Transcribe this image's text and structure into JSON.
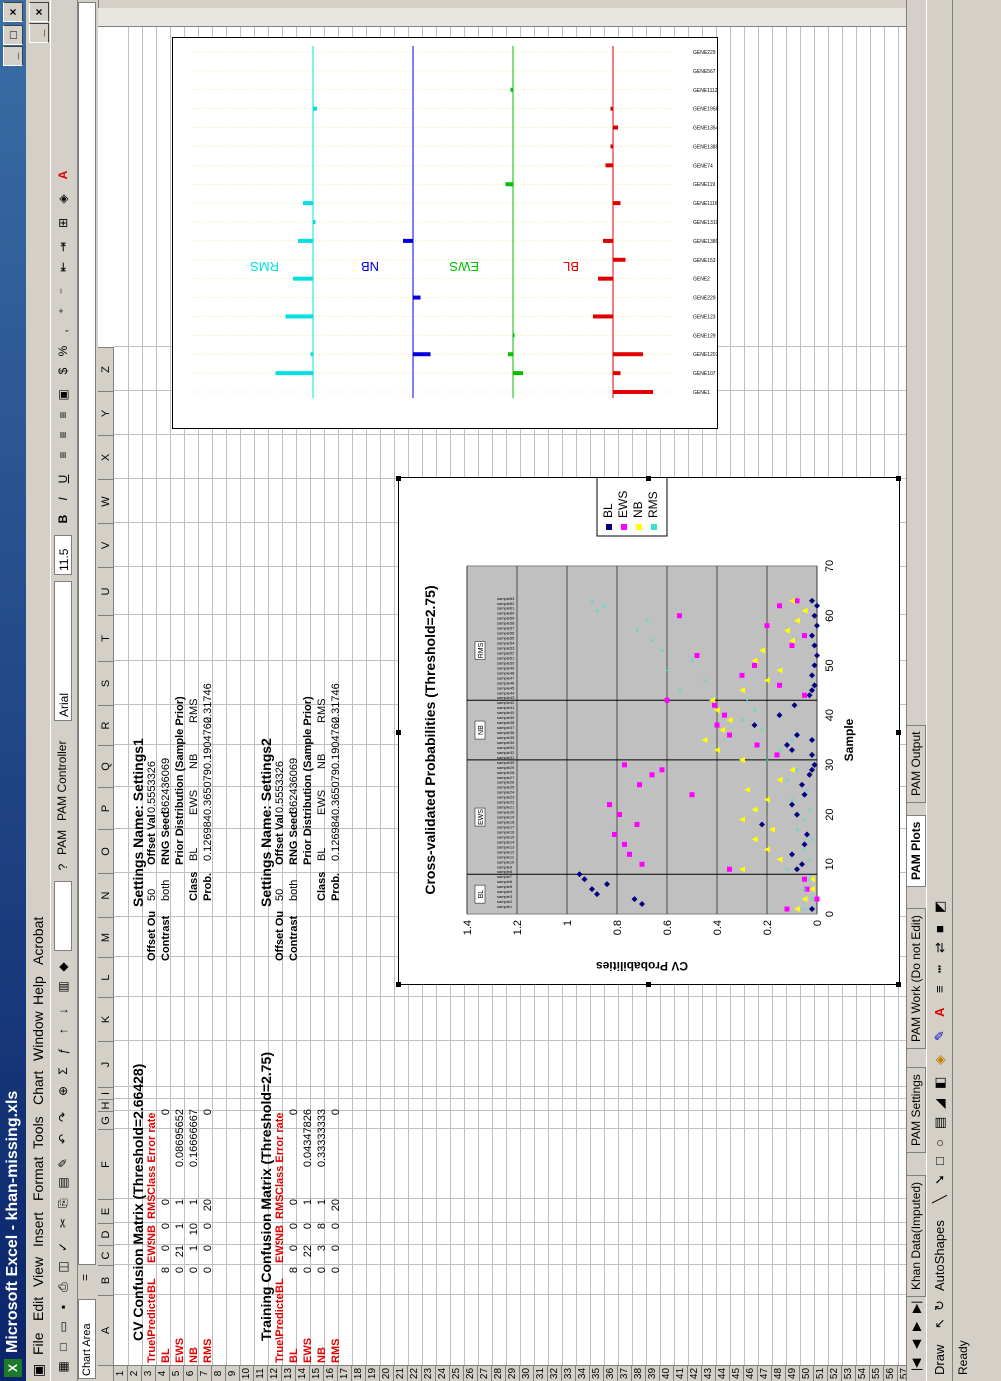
{
  "window": {
    "title": "Microsoft Excel - khan-missing.xls",
    "controls": [
      "_",
      "□",
      "×"
    ]
  },
  "menu": [
    "File",
    "Edit",
    "View",
    "Insert",
    "Format",
    "Tools",
    "Chart",
    "Window",
    "Help",
    "Acrobat"
  ],
  "toolbar": {
    "pam_label": "PAM",
    "pam_controller": "PAM Controller",
    "font": "Arial",
    "size": "11.5"
  },
  "formula_bar": {
    "name_box": "Chart Area",
    "eq": "="
  },
  "columns": [
    "A",
    "B",
    "C",
    "D",
    "E",
    "F",
    "G",
    "H",
    "I",
    "J",
    "K",
    "L",
    "M",
    "N",
    "O",
    "P",
    "Q",
    "R",
    "S",
    "T",
    "U",
    "V",
    "W",
    "X",
    "Y",
    "Z"
  ],
  "rows": [
    "1",
    "2",
    "3",
    "4",
    "5",
    "6",
    "7",
    "8",
    "9",
    "10",
    "11",
    "12",
    "13",
    "14",
    "15",
    "16",
    "17",
    "18",
    "19",
    "20",
    "21",
    "22",
    "23",
    "24",
    "25",
    "26",
    "27",
    "28",
    "29",
    "30",
    "31",
    "32",
    "33",
    "34",
    "35",
    "36",
    "37",
    "38",
    "39",
    "40",
    "41",
    "42",
    "43",
    "44",
    "45",
    "46",
    "47",
    "48",
    "49",
    "50",
    "51",
    "52",
    "53",
    "54",
    "55",
    "56",
    "57"
  ],
  "cv_matrix": {
    "title": "CV Confusion Matrix (Threshold=2.66428)",
    "header": [
      "True\\Predicted",
      "BL",
      "EWS",
      "NB",
      "RMS",
      "Class Error rate"
    ],
    "rows": [
      [
        "BL",
        "8",
        "0",
        "0",
        "0",
        "0"
      ],
      [
        "EWS",
        "0",
        "21",
        "1",
        "1",
        "0.08695652"
      ],
      [
        "NB",
        "0",
        "1",
        "10",
        "1",
        "0.16666667"
      ],
      [
        "RMS",
        "0",
        "0",
        "0",
        "20",
        "0"
      ]
    ]
  },
  "training_matrix": {
    "title": "Training Confusion Matrix (Threshold=2.75)",
    "header": [
      "True\\Predicted",
      "BL",
      "EWS",
      "NB",
      "RMS",
      "Class Error rate"
    ],
    "rows": [
      [
        "BL",
        "8",
        "0",
        "0",
        "0",
        "0"
      ],
      [
        "EWS",
        "0",
        "22",
        "0",
        "1",
        "0.04347826"
      ],
      [
        "NB",
        "0",
        "3",
        "8",
        "1",
        "0.33333333"
      ],
      [
        "RMS",
        "0",
        "0",
        "0",
        "20",
        "0"
      ]
    ]
  },
  "settings1": {
    "title": "Settings Name: Settings1",
    "offset_out_label": "Offset Ou",
    "offset_out_value": "50",
    "offset_val_label": "Offset Val",
    "offset_val_value": "0.5553326",
    "contrast_label": "Contrast",
    "contrast_value": "both",
    "rng_label": "RNG Seed",
    "rng_value": "362436069",
    "prior_title": "Prior Distribution (Sample Prior)",
    "class_label": "Class",
    "prob_label": "Prob.",
    "classes": [
      "BL",
      "EWS",
      "NB",
      "RMS"
    ],
    "probs": [
      "0.126984",
      "0.365079",
      "0.1904762",
      "0.31746"
    ]
  },
  "settings2": {
    "title": "Settings Name: Settings2",
    "offset_out_label": "Offset Ou",
    "offset_out_value": "50",
    "offset_val_label": "Offset Val",
    "offset_val_value": "0.5553326",
    "contrast_label": "Contrast",
    "contrast_value": "both",
    "rng_label": "RNG Seed",
    "rng_value": "362436069",
    "prior_title": "Prior Distribution (Sample Prior)",
    "class_label": "Class",
    "prob_label": "Prob.",
    "classes": [
      "BL",
      "EWS",
      "NB",
      "RMS"
    ],
    "probs": [
      "0.126984",
      "0.365079",
      "0.1904762",
      "0.31746"
    ]
  },
  "sheet_tabs": [
    "Khan Data(Imputed)",
    "PAM Settings",
    "PAM Work (Do not Edit)",
    "PAM Plots",
    "PAM Output"
  ],
  "active_tab": "PAM Plots",
  "draw_bar": {
    "draw": "Draw",
    "autoshapes": "AutoShapes"
  },
  "status": "Ready",
  "colors": {
    "BL": "#e00000",
    "EWS": "#00c000",
    "NB": "#0000e0",
    "RMS": "#00e0e0",
    "BL_marker": "#000080",
    "EWS_marker": "#ff00ff",
    "NB_marker": "#ffff00",
    "RMS_marker": "#40e0d0"
  },
  "chart_data": [
    {
      "type": "scatter",
      "title": "Cross-validated Probabilities (Threshold=2.75)",
      "xlabel": "Sample",
      "ylabel": "CV Probabilities",
      "xlim": [
        0,
        70
      ],
      "ylim": [
        0,
        1.4
      ],
      "xticks": [
        "0",
        "10",
        "20",
        "30",
        "40",
        "50",
        "60",
        "70"
      ],
      "yticks": [
        "0",
        "0.2",
        "0.4",
        "0.6",
        "0.8",
        "1",
        "1.2",
        "1.4"
      ],
      "legend": [
        "BL",
        "EWS",
        "NB",
        "RMS"
      ],
      "legend_placement": "right",
      "group_labels": [
        "BL",
        "EWS",
        "NB",
        "RMS"
      ],
      "group_boundaries": [
        8,
        31,
        43
      ],
      "sample_labels_visible": [
        "sample1",
        "sample2",
        "sample3",
        "sample4",
        "sample5",
        "sample6",
        "sample7",
        "sample8",
        "sample9",
        "sample10",
        "sample11",
        "sample12",
        "sample13",
        "sample14",
        "sample15",
        "sample16",
        "sample17",
        "sample18",
        "sample19",
        "sample20",
        "sample21",
        "sample22",
        "sample23",
        "sample24",
        "sample25",
        "sample26",
        "sample27",
        "sample28",
        "sample29",
        "sample30",
        "sample31",
        "sample32",
        "sample33",
        "sample34",
        "sample35",
        "sample36",
        "sample37",
        "sample38",
        "sample39",
        "sample40",
        "sample41",
        "sample42",
        "sample43",
        "sample44",
        "sample45",
        "sample46",
        "sample47",
        "sample48",
        "sample49",
        "sample50",
        "sample51",
        "sample52",
        "sample53",
        "sample54",
        "sample55",
        "sample56",
        "sample57",
        "sample58",
        "sample59",
        "sample60",
        "sample61",
        "sample62",
        "sample63"
      ],
      "series": [
        {
          "name": "BL",
          "points": [
            [
              1,
              0.02
            ],
            [
              2,
              0.7
            ],
            [
              3,
              0.73
            ],
            [
              4,
              0.88
            ],
            [
              5,
              0.9
            ],
            [
              6,
              0.84
            ],
            [
              7,
              0.93
            ],
            [
              8,
              0.95
            ],
            [
              9,
              0.08
            ],
            [
              10,
              0.06
            ],
            [
              12,
              0.1
            ],
            [
              14,
              0.05
            ],
            [
              16,
              0.04
            ],
            [
              18,
              0.22
            ],
            [
              20,
              0.08
            ],
            [
              22,
              0.1
            ],
            [
              24,
              0.05
            ],
            [
              26,
              0.06
            ],
            [
              28,
              0.03
            ],
            [
              29,
              0.02
            ],
            [
              30,
              0.01
            ],
            [
              32,
              0.02
            ],
            [
              33,
              0.1
            ],
            [
              34,
              0.12
            ],
            [
              35,
              0.02
            ],
            [
              36,
              0.08
            ],
            [
              38,
              0.25
            ],
            [
              40,
              0.15
            ],
            [
              42,
              0.09
            ],
            [
              43,
              0.6
            ],
            [
              44,
              0.03
            ],
            [
              45,
              0.02
            ],
            [
              46,
              0.01
            ],
            [
              48,
              0.02
            ],
            [
              50,
              0.01
            ],
            [
              52,
              0.0
            ],
            [
              54,
              0.01
            ],
            [
              56,
              0.02
            ],
            [
              58,
              0.0
            ],
            [
              60,
              0.01
            ],
            [
              62,
              0.0
            ],
            [
              63,
              0.02
            ]
          ]
        },
        {
          "name": "EWS",
          "points": [
            [
              1,
              0.12
            ],
            [
              3,
              0.0
            ],
            [
              5,
              0.04
            ],
            [
              7,
              0.05
            ],
            [
              9,
              0.35
            ],
            [
              10,
              0.7
            ],
            [
              12,
              0.75
            ],
            [
              14,
              0.77
            ],
            [
              16,
              0.81
            ],
            [
              18,
              0.72
            ],
            [
              20,
              0.79
            ],
            [
              22,
              0.83
            ],
            [
              24,
              0.5
            ],
            [
              26,
              0.71
            ],
            [
              28,
              0.66
            ],
            [
              29,
              0.62
            ],
            [
              30,
              0.77
            ],
            [
              32,
              0.16
            ],
            [
              34,
              0.24
            ],
            [
              36,
              0.35
            ],
            [
              38,
              0.4
            ],
            [
              40,
              0.37
            ],
            [
              42,
              0.41
            ],
            [
              43,
              0.6
            ],
            [
              44,
              0.05
            ],
            [
              46,
              0.15
            ],
            [
              48,
              0.3
            ],
            [
              50,
              0.25
            ],
            [
              52,
              0.48
            ],
            [
              54,
              0.1
            ],
            [
              56,
              0.05
            ],
            [
              58,
              0.2
            ],
            [
              60,
              0.55
            ],
            [
              62,
              0.15
            ],
            [
              63,
              0.08
            ]
          ]
        },
        {
          "name": "NB",
          "points": [
            [
              1,
              0.08
            ],
            [
              3,
              0.05
            ],
            [
              5,
              0.02
            ],
            [
              7,
              0.02
            ],
            [
              9,
              0.3
            ],
            [
              11,
              0.15
            ],
            [
              13,
              0.2
            ],
            [
              15,
              0.25
            ],
            [
              17,
              0.18
            ],
            [
              19,
              0.3
            ],
            [
              21,
              0.25
            ],
            [
              23,
              0.2
            ],
            [
              25,
              0.28
            ],
            [
              27,
              0.15
            ],
            [
              29,
              0.1
            ],
            [
              31,
              0.3
            ],
            [
              33,
              0.4
            ],
            [
              35,
              0.45
            ],
            [
              37,
              0.38
            ],
            [
              39,
              0.35
            ],
            [
              41,
              0.4
            ],
            [
              43,
              0.42
            ],
            [
              45,
              0.3
            ],
            [
              47,
              0.2
            ],
            [
              49,
              0.15
            ],
            [
              51,
              0.25
            ],
            [
              53,
              0.22
            ],
            [
              55,
              0.1
            ],
            [
              57,
              0.12
            ],
            [
              59,
              0.08
            ],
            [
              61,
              0.05
            ],
            [
              63,
              0.1
            ]
          ]
        },
        {
          "name": "RMS",
          "points": [
            [
              1,
              0.05
            ],
            [
              3,
              0.02
            ],
            [
              5,
              0.05
            ],
            [
              7,
              0.03
            ],
            [
              9,
              0.12
            ],
            [
              11,
              0.03
            ],
            [
              13,
              0.05
            ],
            [
              15,
              0.02
            ],
            [
              17,
              0.08
            ],
            [
              19,
              0.05
            ],
            [
              21,
              0.03
            ],
            [
              23,
              0.1
            ],
            [
              25,
              0.04
            ],
            [
              27,
              0.12
            ],
            [
              29,
              0.08
            ],
            [
              31,
              0.2
            ],
            [
              33,
              0.15
            ],
            [
              35,
              0.1
            ],
            [
              37,
              0.22
            ],
            [
              39,
              0.3
            ],
            [
              41,
              0.25
            ],
            [
              43,
              0.28
            ],
            [
              45,
              0.55
            ],
            [
              47,
              0.45
            ],
            [
              49,
              0.6
            ],
            [
              51,
              0.5
            ],
            [
              53,
              0.62
            ],
            [
              55,
              0.66
            ],
            [
              57,
              0.72
            ],
            [
              59,
              0.68
            ],
            [
              61,
              0.88
            ],
            [
              62,
              0.85
            ],
            [
              63,
              0.9
            ]
          ]
        }
      ]
    },
    {
      "type": "bar",
      "title": "",
      "panels": [
        "BL",
        "EWS",
        "NB",
        "RMS"
      ],
      "genes": [
        "GENE1",
        "GENE107",
        "GENE1207",
        "GENE129",
        "GENE123",
        "GENE229",
        "GENE2",
        "GENE153",
        "GENE1389",
        "GENE1319",
        "GENE1116",
        "GENE119",
        "GENE74",
        "GENE1388",
        "GENE1354",
        "GENE1956",
        "GENE1112",
        "GENE567",
        "GENE229"
      ],
      "series": [
        {
          "name": "BL",
          "values": [
            -0.8,
            -0.15,
            -0.6,
            0,
            0.4,
            0,
            0.3,
            -0.25,
            0.2,
            0,
            -0.15,
            0,
            0.15,
            0.05,
            -0.1,
            0.05,
            0,
            0,
            0
          ]
        },
        {
          "name": "EWS",
          "values": [
            0,
            -0.2,
            0.1,
            -0.03,
            0,
            0,
            0,
            0,
            0,
            0,
            0,
            0.15,
            0,
            0,
            0,
            0,
            0.05,
            0,
            0
          ]
        },
        {
          "name": "NB",
          "values": [
            0,
            0,
            -0.35,
            0,
            0,
            -0.15,
            0,
            0,
            0.2,
            0,
            0,
            0,
            0,
            0,
            0,
            0,
            0,
            0,
            0
          ]
        },
        {
          "name": "RMS",
          "values": [
            0,
            0.75,
            0.05,
            0,
            0.55,
            0,
            0.4,
            0,
            0.3,
            -0.05,
            0.2,
            0,
            0,
            0,
            0,
            -0.08,
            0,
            0,
            0
          ]
        }
      ]
    }
  ]
}
